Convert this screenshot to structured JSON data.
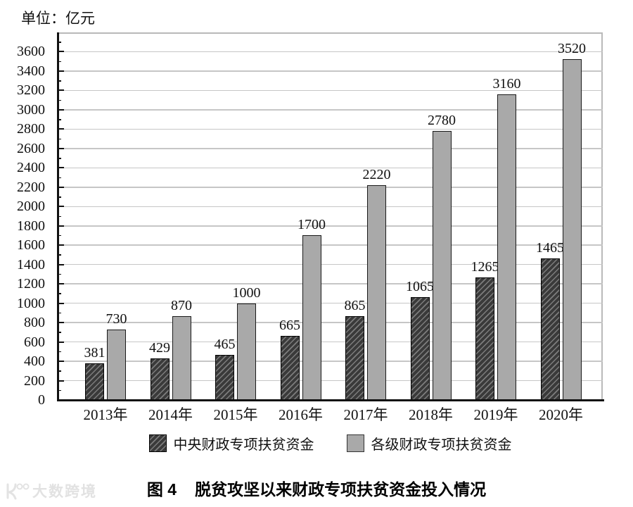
{
  "page": {
    "unit_label": "单位：亿元",
    "caption_prefix": "图 4",
    "caption_text": "脱贫攻坚以来财政专项扶贫资金投入情况",
    "watermark_text": "大数跨境"
  },
  "chart_data": {
    "type": "bar",
    "title": "图4 脱贫攻坚以来财政专项扶贫资金投入情况",
    "unit": "亿元",
    "categories": [
      "2013年",
      "2014年",
      "2015年",
      "2016年",
      "2017年",
      "2018年",
      "2019年",
      "2020年"
    ],
    "series": [
      {
        "name": "中央财政专项扶贫资金",
        "style": "dark-hatched",
        "values": [
          381,
          429,
          465,
          665,
          865,
          1065,
          1265,
          1465
        ]
      },
      {
        "name": "各级财政专项扶贫资金",
        "style": "gray",
        "values": [
          730,
          870,
          1000,
          1700,
          2220,
          2780,
          3160,
          3520
        ]
      }
    ],
    "xlabel": "",
    "ylabel": "单位：亿元",
    "ylim": [
      0,
      3800
    ],
    "ytick_step": 200,
    "ytick_max": 3600,
    "minor_tick_step": 100,
    "grid": true,
    "legend_position": "bottom",
    "colors": {
      "dark_bar": "#3a3a3a",
      "dark_hatch": "#7d7d7d",
      "gray_bar": "#a9a9a9",
      "grid": "#c6c6c6",
      "frame": "#b9b9b9",
      "axis": "#111111"
    }
  }
}
